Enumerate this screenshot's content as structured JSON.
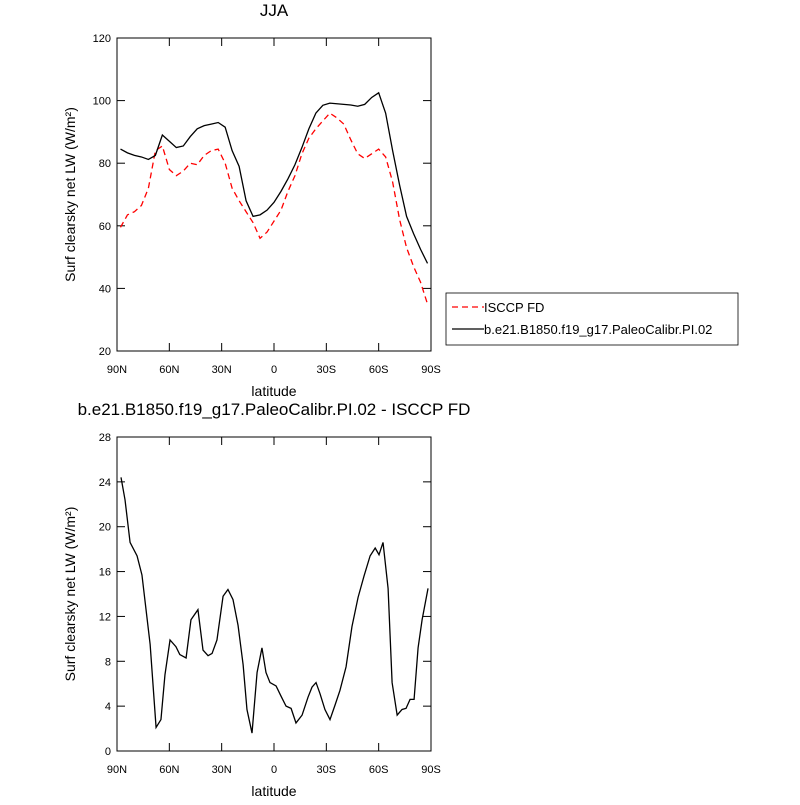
{
  "chart_data": [
    {
      "type": "line",
      "title": "JJA",
      "x_label": "latitude",
      "y_label": "Surf clearsky net LW (W/m²)",
      "x": [
        88,
        84,
        80,
        76,
        72,
        68,
        64,
        60,
        56,
        52,
        48,
        44,
        40,
        36,
        32,
        28,
        24,
        20,
        16,
        12,
        8,
        4,
        0,
        -4,
        -8,
        -12,
        -16,
        -20,
        -24,
        -28,
        -32,
        -36,
        -40,
        -44,
        -48,
        -52,
        -56,
        -60,
        -64,
        -68,
        -72,
        -76,
        -80,
        -84,
        -88
      ],
      "series": [
        {
          "name": "ISCCP FD",
          "color": "#ff0000",
          "dashed": true,
          "values": [
            59.5,
            63.5,
            64.5,
            66.5,
            72,
            84,
            85.5,
            78,
            76,
            77.5,
            80,
            79.5,
            82.5,
            84,
            84.5,
            80,
            72,
            68,
            64.5,
            61,
            56,
            58,
            61.5,
            65,
            71,
            76,
            83,
            88,
            91,
            93.5,
            96,
            94.5,
            92.5,
            87.5,
            83,
            81.5,
            83,
            84.5,
            82,
            74,
            62,
            53,
            47,
            42,
            35
          ]
        },
        {
          "name": "b.e21.B1850.f19_g17.PaleoCalibr.PI.02",
          "color": "#000000",
          "dashed": false,
          "values": [
            84.5,
            83.3,
            82.5,
            82,
            81.2,
            82.5,
            89,
            87,
            85,
            85.5,
            88.5,
            91,
            92,
            92.5,
            93,
            91.5,
            84,
            79,
            68,
            63,
            63.5,
            65,
            67.5,
            71,
            75,
            79.5,
            85,
            91,
            96,
            98.5,
            99.2,
            99,
            98.8,
            98.6,
            98.2,
            98.8,
            101,
            102.5,
            96,
            84,
            73,
            63,
            57.5,
            52.5,
            48
          ]
        }
      ],
      "xlim": [
        90,
        -90
      ],
      "xticks": [
        {
          "value": 90,
          "label": "90N"
        },
        {
          "value": 60,
          "label": "60N"
        },
        {
          "value": 30,
          "label": "30N"
        },
        0,
        {
          "value": -30,
          "label": "30S"
        },
        {
          "value": -60,
          "label": "60S"
        },
        {
          "value": -90,
          "label": "90S"
        }
      ],
      "ylim": [
        20,
        120
      ],
      "yticks": [
        20,
        40,
        60,
        80,
        100,
        120
      ],
      "legend": "outside-right"
    },
    {
      "type": "line",
      "title": "b.e21.B1850.f19_g17.PaleoCalibr.PI.02 - ISCCP FD",
      "x_label": "latitude",
      "y_label": "Surf clearsky net LW (W/m²)",
      "x": [
        87.7,
        85.4,
        82.5,
        78.5,
        75.7,
        71,
        67.6,
        64.8,
        62.5,
        59.6,
        56.2,
        54,
        50.4,
        47.6,
        43.6,
        40.7,
        37.8,
        35.5,
        32.7,
        29.2,
        26.4,
        23.5,
        20.6,
        17.7,
        15.5,
        12.6,
        9.7,
        6.9,
        4.6,
        2.3,
        -1.2,
        -4,
        -6.9,
        -9.8,
        -12.6,
        -16.1,
        -19.5,
        -21.8,
        -24.1,
        -26.4,
        -29.2,
        -32.1,
        -35,
        -37.8,
        -41.3,
        -44.7,
        -48.2,
        -51.6,
        -55.1,
        -58,
        -60.2,
        -62.5,
        -65.4,
        -67.7,
        -70.6,
        -73.4,
        -75.7,
        -78,
        -80.3,
        -82.6,
        -84.9,
        -88.3
      ],
      "series": [
        {
          "color": "#000000",
          "dashed": false,
          "values": [
            24.4,
            22.4,
            18.6,
            17.4,
            15.7,
            9.5,
            2.1,
            2.8,
            6.8,
            9.9,
            9.3,
            8.6,
            8.3,
            11.7,
            12.6,
            9.0,
            8.5,
            8.7,
            9.9,
            13.8,
            14.4,
            13.5,
            11.2,
            7.7,
            3.7,
            1.6,
            7.0,
            9.2,
            7.0,
            6.1,
            5.8,
            4.9,
            4.0,
            3.8,
            2.5,
            3.2,
            4.8,
            5.7,
            6.1,
            5.1,
            3.7,
            2.8,
            4.1,
            5.4,
            7.5,
            11.1,
            13.7,
            15.6,
            17.4,
            18.1,
            17.5,
            18.6,
            14.5,
            6.1,
            3.2,
            3.7,
            3.8,
            4.6,
            4.6,
            9.2,
            11.7,
            14.5
          ]
        }
      ],
      "xlim": [
        90,
        -90
      ],
      "xticks": [
        {
          "value": 90,
          "label": "90N"
        },
        {
          "value": 60,
          "label": "60N"
        },
        {
          "value": 30,
          "label": "30N"
        },
        0,
        {
          "value": -30,
          "label": "30S"
        },
        {
          "value": -60,
          "label": "60S"
        },
        {
          "value": -90,
          "label": "90S"
        }
      ],
      "ylim": [
        0,
        28
      ],
      "yticks": [
        0,
        4,
        8,
        12,
        16,
        20,
        24,
        28
      ]
    }
  ]
}
